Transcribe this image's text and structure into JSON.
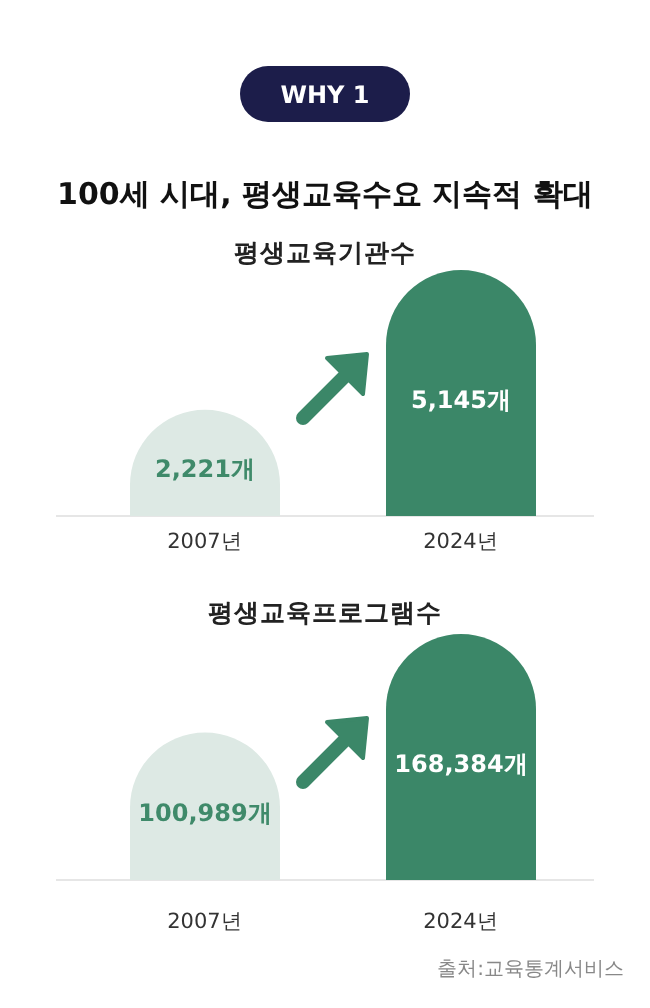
{
  "chart_data": [
    {
      "type": "bar",
      "title": "평생교육기관수",
      "annotations": [
        "WHY 1",
        "100세 시대, 평생교육수요 지속적 확대"
      ],
      "categories": [
        "2007년",
        "2024년"
      ],
      "values": [
        2221,
        5145
      ],
      "value_labels": [
        "2,221개",
        "5,145개"
      ],
      "colors": [
        "#dde9e4",
        "#3b8768"
      ]
    },
    {
      "type": "bar",
      "title": "평생교육프로그램수",
      "annotations": [
        "출처:교육통계서비스"
      ],
      "categories": [
        "2007년",
        "2024년"
      ],
      "values": [
        100989,
        168384
      ],
      "value_labels": [
        "100,989개",
        "168,384개"
      ],
      "colors": [
        "#dde9e4",
        "#3b8768"
      ]
    }
  ]
}
